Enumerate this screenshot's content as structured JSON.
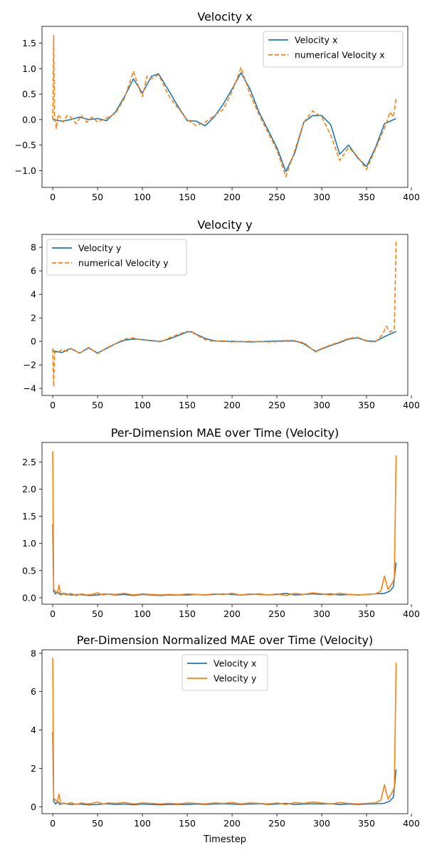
{
  "figure": {
    "xlabel_bottom": "Timestep"
  },
  "chart_data": [
    {
      "type": "line",
      "title": "Velocity x",
      "xlabel": "",
      "ylabel": "",
      "xlim": [
        -12,
        396
      ],
      "ylim": [
        -1.33,
        1.83
      ],
      "xticks": [
        0,
        50,
        100,
        150,
        200,
        250,
        300,
        350,
        400
      ],
      "yticks": [
        -1.0,
        -0.5,
        0.0,
        0.5,
        1.0,
        1.5
      ],
      "ytick_labels": [
        "−1.0",
        "−0.5",
        "0.0",
        "0.5",
        "1.0",
        "1.5"
      ],
      "legend_position": "top-right",
      "series": [
        {
          "name": "Velocity x",
          "style": "solid",
          "color": "#1f77b4",
          "x": [
            0,
            10,
            20,
            30,
            40,
            50,
            60,
            70,
            80,
            90,
            100,
            110,
            118,
            130,
            140,
            150,
            160,
            170,
            180,
            190,
            200,
            210,
            220,
            230,
            240,
            250,
            260,
            270,
            280,
            290,
            300,
            310,
            320,
            330,
            340,
            350,
            360,
            370,
            383
          ],
          "y": [
            0.0,
            -0.03,
            0.0,
            0.05,
            0.0,
            0.02,
            -0.02,
            0.15,
            0.45,
            0.8,
            0.52,
            0.85,
            0.9,
            0.55,
            0.25,
            -0.02,
            -0.03,
            -0.12,
            0.05,
            0.3,
            0.6,
            0.92,
            0.6,
            0.15,
            -0.2,
            -0.55,
            -1.02,
            -0.65,
            -0.05,
            0.08,
            0.08,
            -0.1,
            -0.68,
            -0.5,
            -0.75,
            -0.92,
            -0.55,
            -0.08,
            0.02
          ]
        },
        {
          "name": "numerical Velocity x",
          "style": "dashed",
          "color": "#ff7f0e",
          "x": [
            0,
            1,
            2,
            4,
            6,
            8,
            12,
            16,
            20,
            26,
            32,
            38,
            44,
            50,
            56,
            60,
            70,
            80,
            90,
            95,
            100,
            105,
            110,
            118,
            130,
            140,
            150,
            160,
            170,
            180,
            190,
            200,
            210,
            220,
            230,
            240,
            250,
            260,
            270,
            280,
            290,
            300,
            310,
            320,
            330,
            340,
            350,
            360,
            372,
            376,
            380,
            383
          ],
          "y": [
            0.0,
            1.65,
            0.1,
            -0.18,
            0.1,
            0.05,
            -0.05,
            0.08,
            0.05,
            -0.08,
            0.08,
            -0.05,
            0.05,
            -0.05,
            0.0,
            0.03,
            0.12,
            0.42,
            0.95,
            0.68,
            0.45,
            0.85,
            0.8,
            0.88,
            0.45,
            0.22,
            0.0,
            -0.12,
            -0.05,
            0.08,
            0.2,
            0.55,
            1.02,
            0.5,
            0.1,
            -0.25,
            -0.6,
            -1.12,
            -0.6,
            -0.05,
            0.17,
            0.05,
            -0.3,
            -0.8,
            -0.55,
            -0.72,
            -0.98,
            -0.58,
            -0.08,
            0.15,
            0.05,
            0.42
          ]
        }
      ]
    },
    {
      "type": "line",
      "title": "Velocity y",
      "xlabel": "",
      "ylabel": "",
      "xlim": [
        -12,
        396
      ],
      "ylim": [
        -4.6,
        9.1
      ],
      "xticks": [
        0,
        50,
        100,
        150,
        200,
        250,
        300,
        350,
        400
      ],
      "yticks": [
        -4,
        -2,
        0,
        2,
        4,
        6,
        8
      ],
      "ytick_labels": [
        "−4",
        "−2",
        "0",
        "2",
        "4",
        "6",
        "8"
      ],
      "legend_position": "top-left",
      "series": [
        {
          "name": "Velocity y",
          "style": "solid",
          "color": "#1f77b4",
          "x": [
            0,
            10,
            20,
            30,
            40,
            50,
            60,
            70,
            80,
            90,
            100,
            110,
            120,
            130,
            140,
            150,
            155,
            160,
            170,
            180,
            190,
            200,
            220,
            240,
            260,
            270,
            280,
            293,
            300,
            310,
            320,
            330,
            340,
            350,
            360,
            370,
            383
          ],
          "y": [
            -0.8,
            -0.95,
            -0.6,
            -1.0,
            -0.55,
            -1.0,
            -0.6,
            -0.2,
            0.1,
            0.2,
            0.15,
            0.05,
            0.0,
            0.2,
            0.5,
            0.8,
            0.82,
            0.6,
            0.25,
            0.05,
            0.0,
            0.0,
            -0.05,
            0.0,
            0.05,
            0.05,
            -0.2,
            -0.85,
            -0.65,
            -0.35,
            -0.1,
            0.2,
            0.3,
            0.05,
            0.0,
            0.4,
            0.85
          ]
        },
        {
          "name": "numerical Velocity y",
          "style": "dashed",
          "color": "#ff7f0e",
          "x": [
            0,
            1,
            2,
            6,
            10,
            16,
            20,
            30,
            40,
            50,
            60,
            70,
            80,
            90,
            100,
            110,
            120,
            130,
            140,
            150,
            155,
            160,
            170,
            180,
            190,
            200,
            220,
            240,
            260,
            270,
            280,
            293,
            300,
            310,
            320,
            330,
            340,
            350,
            360,
            368,
            372,
            376,
            381,
            383
          ],
          "y": [
            -0.6,
            -3.85,
            -0.9,
            -0.95,
            -0.7,
            -0.85,
            -0.6,
            -1.0,
            -0.5,
            -1.05,
            -0.55,
            -0.2,
            0.2,
            0.3,
            0.1,
            0.1,
            -0.05,
            0.3,
            0.6,
            0.85,
            0.8,
            0.55,
            0.15,
            0.0,
            0.05,
            -0.05,
            0.0,
            -0.05,
            0.0,
            0.0,
            -0.1,
            -0.9,
            -0.6,
            -0.3,
            -0.05,
            0.25,
            0.35,
            0.0,
            -0.05,
            0.6,
            1.3,
            0.8,
            1.0,
            8.5
          ]
        }
      ]
    },
    {
      "type": "line",
      "title": "Per-Dimension MAE over Time (Velocity)",
      "xlabel": "",
      "ylabel": "",
      "xlim": [
        -12,
        396
      ],
      "ylim": [
        -0.12,
        2.86
      ],
      "xticks": [
        0,
        50,
        100,
        150,
        200,
        250,
        300,
        350,
        400
      ],
      "yticks": [
        0.0,
        0.5,
        1.0,
        1.5,
        2.0,
        2.5
      ],
      "ytick_labels": [
        "0.0",
        "0.5",
        "1.0",
        "1.5",
        "2.0",
        "2.5"
      ],
      "legend_position": "none",
      "series": [
        {
          "name": "Velocity x",
          "style": "solid",
          "color": "#1f77b4",
          "x": [
            0,
            1,
            3,
            6,
            8,
            12,
            20,
            30,
            40,
            50,
            60,
            70,
            80,
            90,
            100,
            110,
            120,
            130,
            140,
            150,
            160,
            170,
            180,
            190,
            200,
            210,
            220,
            230,
            240,
            250,
            260,
            270,
            280,
            290,
            300,
            310,
            320,
            330,
            340,
            350,
            360,
            370,
            376,
            380,
            383
          ],
          "y": [
            1.35,
            0.12,
            0.07,
            0.1,
            0.06,
            0.08,
            0.05,
            0.06,
            0.04,
            0.05,
            0.07,
            0.05,
            0.06,
            0.04,
            0.06,
            0.05,
            0.04,
            0.05,
            0.05,
            0.05,
            0.06,
            0.05,
            0.06,
            0.07,
            0.06,
            0.05,
            0.06,
            0.07,
            0.05,
            0.06,
            0.08,
            0.05,
            0.06,
            0.07,
            0.06,
            0.07,
            0.05,
            0.06,
            0.05,
            0.06,
            0.07,
            0.08,
            0.12,
            0.2,
            0.65
          ]
        },
        {
          "name": "Velocity y",
          "style": "solid",
          "color": "#ff7f0e",
          "x": [
            0,
            1,
            3,
            5,
            7,
            9,
            12,
            16,
            20,
            26,
            32,
            38,
            44,
            50,
            56,
            62,
            70,
            80,
            90,
            100,
            110,
            120,
            130,
            140,
            150,
            160,
            170,
            180,
            190,
            200,
            210,
            220,
            230,
            240,
            250,
            260,
            270,
            280,
            290,
            300,
            310,
            320,
            330,
            340,
            350,
            360,
            366,
            370,
            374,
            378,
            381,
            383
          ],
          "y": [
            2.7,
            0.15,
            0.12,
            0.08,
            0.23,
            0.05,
            0.07,
            0.05,
            0.08,
            0.04,
            0.07,
            0.05,
            0.06,
            0.09,
            0.05,
            0.07,
            0.06,
            0.08,
            0.05,
            0.07,
            0.06,
            0.05,
            0.06,
            0.05,
            0.07,
            0.06,
            0.05,
            0.07,
            0.06,
            0.08,
            0.05,
            0.07,
            0.06,
            0.05,
            0.07,
            0.04,
            0.08,
            0.06,
            0.09,
            0.07,
            0.05,
            0.08,
            0.06,
            0.05,
            0.06,
            0.07,
            0.12,
            0.4,
            0.15,
            0.25,
            0.35,
            2.62
          ]
        }
      ]
    },
    {
      "type": "line",
      "title": "Per-Dimension Normalized MAE over Time (Velocity)",
      "xlabel": "Timestep",
      "ylabel": "",
      "xlim": [
        -12,
        396
      ],
      "ylim": [
        -0.36,
        8.18
      ],
      "xticks": [
        0,
        50,
        100,
        150,
        200,
        250,
        300,
        350,
        400
      ],
      "yticks": [
        0,
        2,
        4,
        6,
        8
      ],
      "ytick_labels": [
        "0",
        "2",
        "4",
        "6",
        "8"
      ],
      "legend_position": "top-center",
      "series": [
        {
          "name": "Velocity x",
          "style": "solid",
          "color": "#1f77b4",
          "x": [
            0,
            1,
            3,
            6,
            8,
            12,
            20,
            30,
            40,
            50,
            60,
            70,
            80,
            90,
            100,
            110,
            120,
            130,
            140,
            150,
            160,
            170,
            180,
            190,
            200,
            210,
            220,
            230,
            240,
            250,
            260,
            270,
            280,
            290,
            300,
            310,
            320,
            330,
            340,
            350,
            360,
            370,
            376,
            380,
            383
          ],
          "y": [
            3.9,
            0.3,
            0.15,
            0.25,
            0.12,
            0.18,
            0.12,
            0.15,
            0.1,
            0.12,
            0.16,
            0.12,
            0.14,
            0.1,
            0.14,
            0.12,
            0.1,
            0.12,
            0.12,
            0.12,
            0.14,
            0.12,
            0.14,
            0.16,
            0.14,
            0.12,
            0.14,
            0.16,
            0.12,
            0.14,
            0.18,
            0.12,
            0.14,
            0.16,
            0.14,
            0.16,
            0.12,
            0.14,
            0.12,
            0.14,
            0.16,
            0.18,
            0.3,
            0.5,
            1.95
          ]
        },
        {
          "name": "Velocity y",
          "style": "solid",
          "color": "#ff7f0e",
          "x": [
            0,
            1,
            3,
            5,
            7,
            9,
            12,
            16,
            20,
            26,
            32,
            38,
            44,
            50,
            56,
            62,
            70,
            80,
            90,
            100,
            110,
            120,
            130,
            140,
            150,
            160,
            170,
            180,
            190,
            200,
            210,
            220,
            230,
            240,
            250,
            260,
            270,
            280,
            290,
            300,
            310,
            320,
            330,
            340,
            350,
            360,
            366,
            370,
            374,
            378,
            381,
            383
          ],
          "y": [
            7.75,
            0.45,
            0.35,
            0.25,
            0.65,
            0.15,
            0.2,
            0.15,
            0.22,
            0.12,
            0.2,
            0.15,
            0.18,
            0.25,
            0.15,
            0.2,
            0.18,
            0.22,
            0.15,
            0.2,
            0.18,
            0.15,
            0.18,
            0.15,
            0.2,
            0.18,
            0.15,
            0.2,
            0.18,
            0.22,
            0.15,
            0.2,
            0.18,
            0.15,
            0.2,
            0.12,
            0.22,
            0.18,
            0.25,
            0.2,
            0.15,
            0.22,
            0.18,
            0.15,
            0.18,
            0.2,
            0.35,
            1.15,
            0.4,
            0.7,
            1.0,
            7.5
          ]
        }
      ]
    }
  ]
}
